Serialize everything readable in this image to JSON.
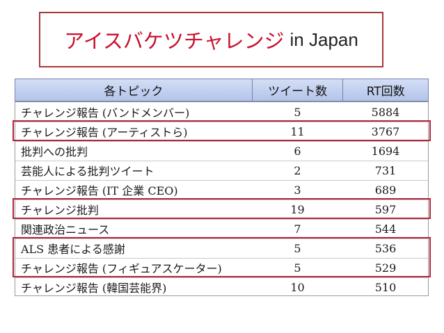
{
  "title": {
    "main": "アイスバケツチャレンジ",
    "sub": "in Japan"
  },
  "table": {
    "headers": [
      "各トピック",
      "ツイート数",
      "RT回数"
    ],
    "rows": [
      {
        "topic": "チャレンジ報告 (バンドメンバー)",
        "tweets": "5",
        "rt": "5884"
      },
      {
        "topic": "チャレンジ報告 (アーティストら)",
        "tweets": "11",
        "rt": "3767"
      },
      {
        "topic": "批判への批判",
        "tweets": "6",
        "rt": "1694"
      },
      {
        "topic": "芸能人による批判ツイート",
        "tweets": "2",
        "rt": "731"
      },
      {
        "topic": "チャレンジ報告 (IT 企業 CEO)",
        "tweets": "3",
        "rt": "689"
      },
      {
        "topic": "チャレンジ批判",
        "tweets": "19",
        "rt": "597"
      },
      {
        "topic": "関連政治ニュース",
        "tweets": "7",
        "rt": "544"
      },
      {
        "topic": "ALS 患者による感謝",
        "tweets": "5",
        "rt": "536"
      },
      {
        "topic": "チャレンジ報告 (フィギュアスケーター)",
        "tweets": "5",
        "rt": "529"
      },
      {
        "topic": "チャレンジ報告 (韓国芸能界)",
        "tweets": "10",
        "rt": "510"
      }
    ]
  },
  "highlight_color": "#b2243c"
}
